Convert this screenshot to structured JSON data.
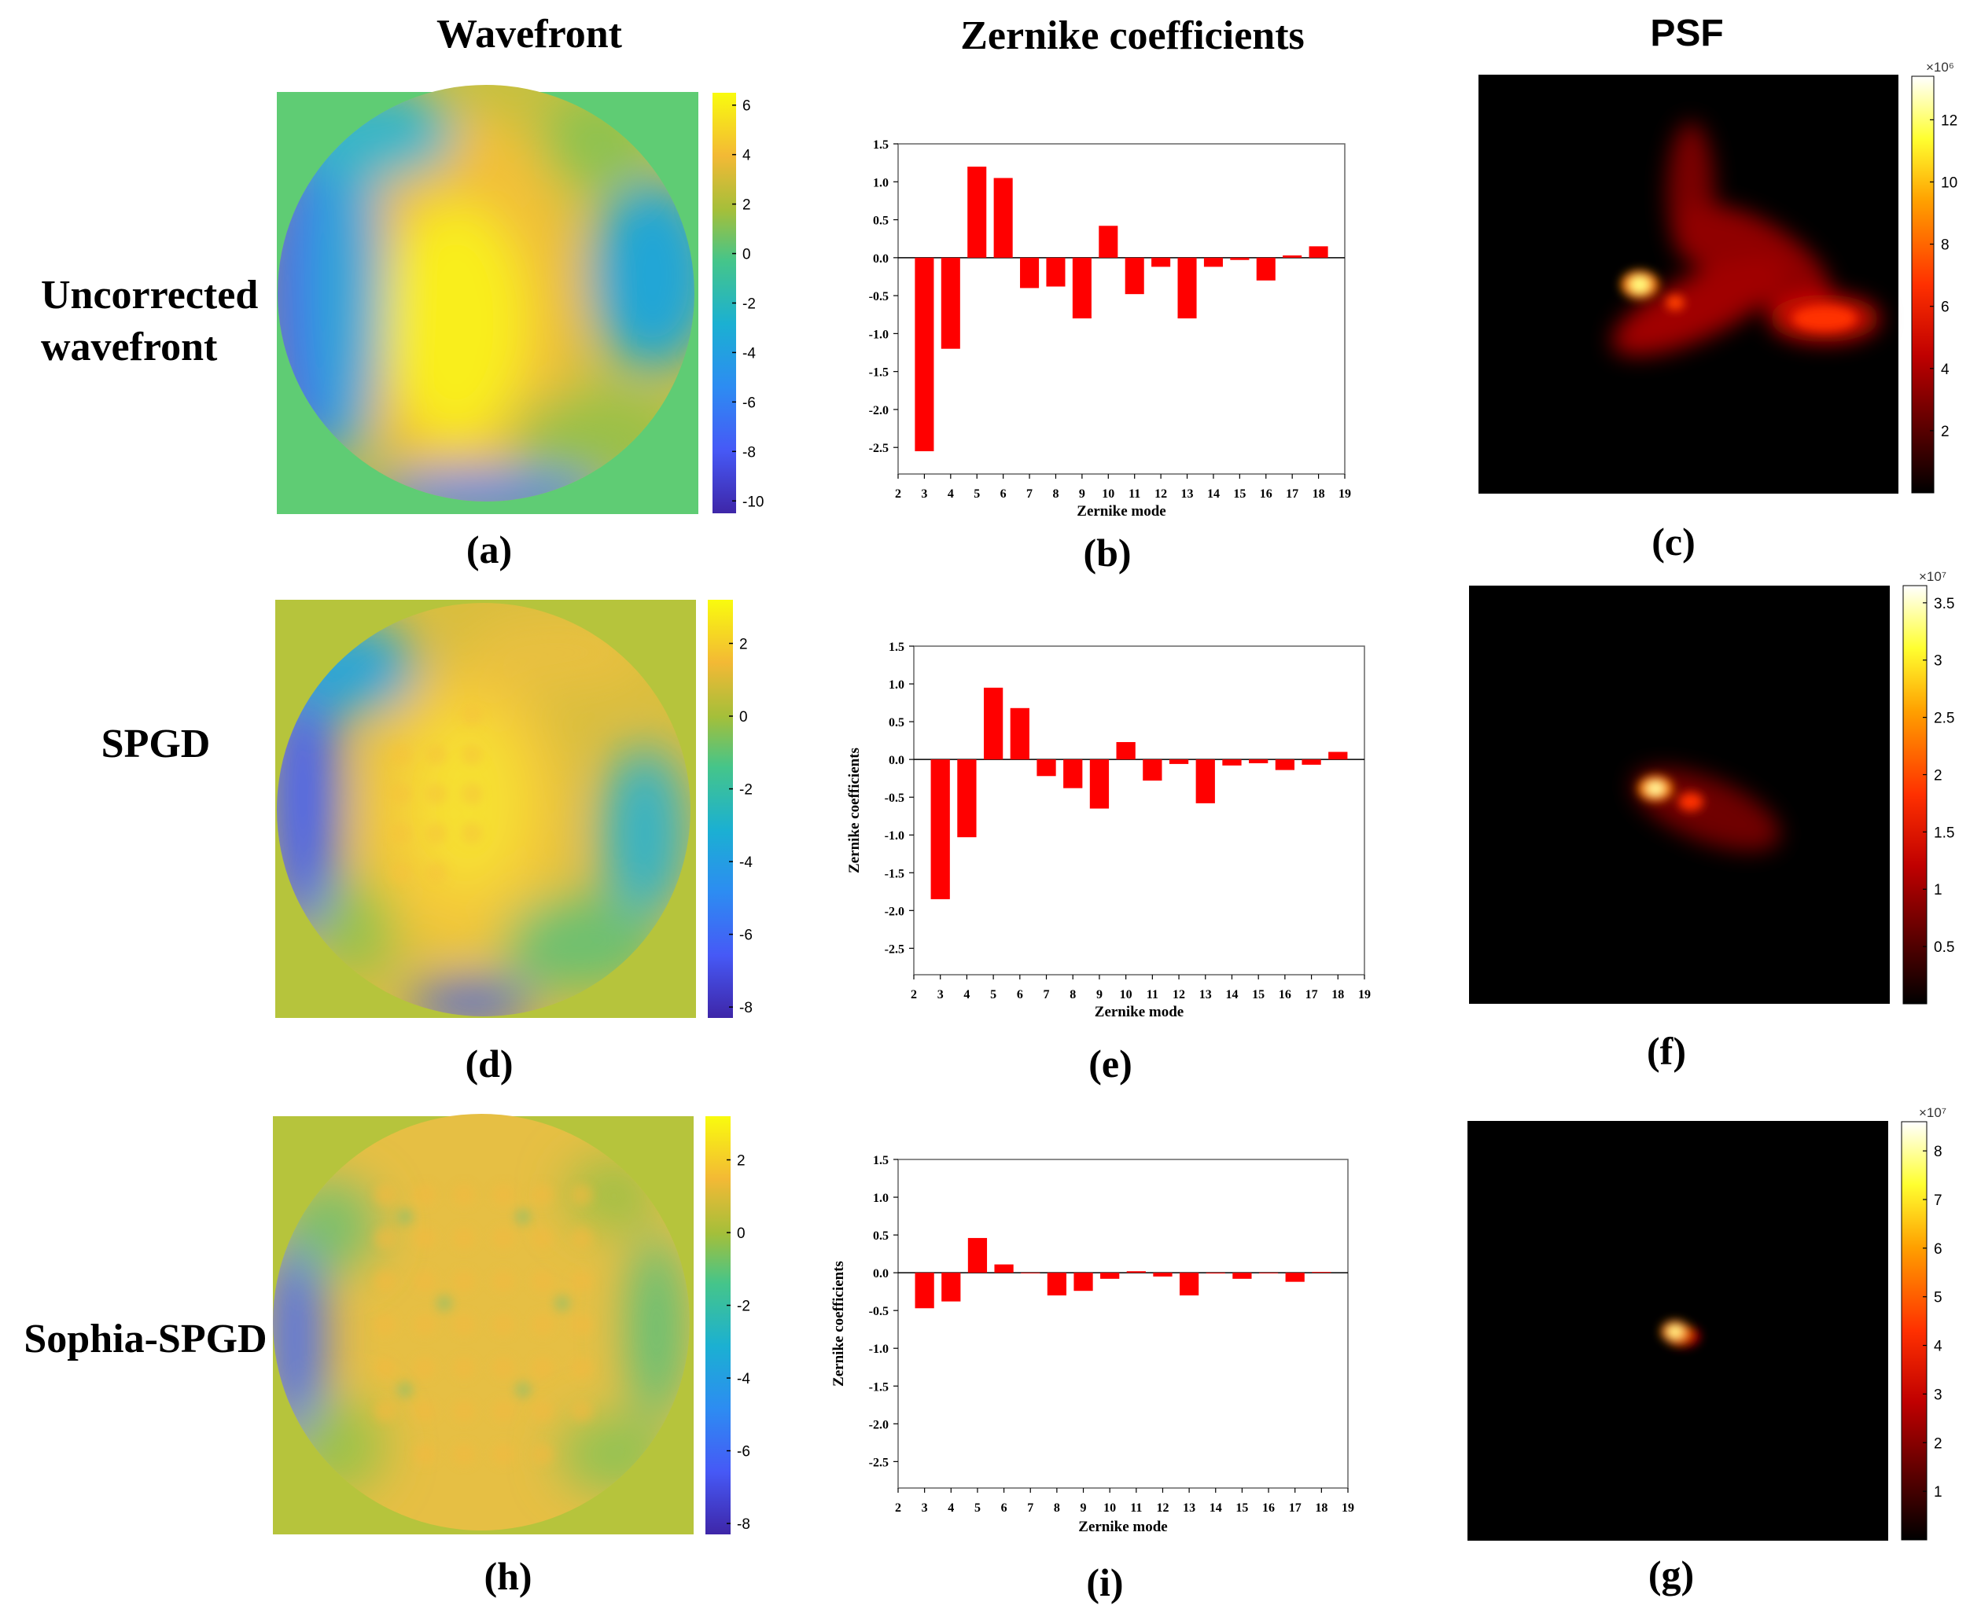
{
  "column_headers": {
    "wavefront": "Wavefront",
    "zernike": "Zernike coefficients",
    "psf": "PSF"
  },
  "row_labels": {
    "uncorrected_line1": "Uncorrected",
    "uncorrected_line2": "wavefront",
    "spgd": "SPGD",
    "sophia": "Sophia-SPGD"
  },
  "panel_labels": [
    "(a)",
    "(b)",
    "(c)",
    "(d)",
    "(e)",
    "(f)",
    "(h)",
    "(i)",
    "(g)"
  ],
  "colors": {
    "bar": "#ff0000",
    "text": "#000000",
    "gridline": "#000000"
  },
  "wavefront_colorbars": [
    {
      "ticks": [
        "6",
        "4",
        "2",
        "0",
        "-2",
        "-4",
        "-6",
        "-8",
        "-10"
      ],
      "values": [
        6,
        4,
        2,
        0,
        -2,
        -4,
        -6,
        -8,
        -10
      ],
      "range": [
        -10.5,
        6.5
      ]
    },
    {
      "ticks": [
        "2",
        "0",
        "-2",
        "-4",
        "-6",
        "-8"
      ],
      "values": [
        2,
        0,
        -2,
        -4,
        -6,
        -8
      ],
      "range": [
        -8.3,
        3.2
      ]
    },
    {
      "ticks": [
        "2",
        "0",
        "-2",
        "-4",
        "-6",
        "-8"
      ],
      "values": [
        2,
        0,
        -2,
        -4,
        -6,
        -8
      ],
      "range": [
        -8.3,
        3.2
      ]
    }
  ],
  "psf_colorbars": [
    {
      "exponent": "×10⁶",
      "ticks": [
        "12",
        "10",
        "8",
        "6",
        "4",
        "2"
      ],
      "values": [
        12,
        10,
        8,
        6,
        4,
        2
      ],
      "range": [
        0,
        13.4
      ]
    },
    {
      "exponent": "×10⁷",
      "ticks": [
        "3.5",
        "3",
        "2.5",
        "2",
        "1.5",
        "1",
        "0.5"
      ],
      "values": [
        3.5,
        3,
        2.5,
        2,
        1.5,
        1,
        0.5
      ],
      "range": [
        0,
        3.65
      ]
    },
    {
      "exponent": "×10⁷",
      "ticks": [
        "8",
        "7",
        "6",
        "5",
        "4",
        "3",
        "2",
        "1"
      ],
      "values": [
        8,
        7,
        6,
        5,
        4,
        3,
        2,
        1
      ],
      "range": [
        0,
        8.6
      ]
    }
  ],
  "chart_data": [
    {
      "type": "bar",
      "title": "",
      "xlabel": "Zernike mode",
      "ylabel": "",
      "x": [
        3,
        4,
        5,
        6,
        7,
        8,
        9,
        10,
        11,
        12,
        13,
        14,
        15,
        16,
        17,
        18
      ],
      "values": [
        -2.55,
        -1.2,
        1.2,
        1.05,
        -0.4,
        -0.38,
        -0.8,
        0.42,
        -0.48,
        -0.12,
        -0.8,
        -0.12,
        -0.03,
        -0.3,
        0.03,
        0.15
      ],
      "xlim": [
        2,
        19
      ],
      "ylim": [
        -2.85,
        1.5
      ],
      "xticks": [
        "2",
        "3",
        "4",
        "5",
        "6",
        "7",
        "8",
        "9",
        "10",
        "11",
        "12",
        "13",
        "14",
        "15",
        "16",
        "17",
        "18",
        "19"
      ],
      "yticks": [
        "1.5",
        "1.0",
        "0.5",
        "0.0",
        "-0.5",
        "-1.0",
        "-1.5",
        "-2.0",
        "-2.5"
      ]
    },
    {
      "type": "bar",
      "title": "",
      "xlabel": "Zernike mode",
      "ylabel": "Zernike coefficients",
      "x": [
        3,
        4,
        5,
        6,
        7,
        8,
        9,
        10,
        11,
        12,
        13,
        14,
        15,
        16,
        17,
        18
      ],
      "values": [
        -1.85,
        -1.03,
        0.95,
        0.68,
        -0.22,
        -0.38,
        -0.65,
        0.23,
        -0.28,
        -0.06,
        -0.58,
        -0.08,
        -0.05,
        -0.14,
        -0.07,
        0.1
      ],
      "xlim": [
        2,
        19
      ],
      "ylim": [
        -2.85,
        1.5
      ],
      "xticks": [
        "2",
        "3",
        "4",
        "5",
        "6",
        "7",
        "8",
        "9",
        "10",
        "11",
        "12",
        "13",
        "14",
        "15",
        "16",
        "17",
        "18",
        "19"
      ],
      "yticks": [
        "1.5",
        "1.0",
        "0.5",
        "0.0",
        "-0.5",
        "-1.0",
        "-1.5",
        "-2.0",
        "-2.5"
      ]
    },
    {
      "type": "bar",
      "title": "",
      "xlabel": "Zernike mode",
      "ylabel": "Zernike coefficients",
      "x": [
        3,
        4,
        5,
        6,
        7,
        8,
        9,
        10,
        11,
        12,
        13,
        14,
        15,
        16,
        17,
        18
      ],
      "values": [
        -0.47,
        -0.38,
        0.46,
        0.11,
        0.0,
        -0.3,
        -0.24,
        -0.08,
        0.02,
        -0.05,
        -0.3,
        -0.01,
        -0.08,
        0.0,
        -0.12,
        0.01
      ],
      "xlim": [
        2,
        19
      ],
      "ylim": [
        -2.85,
        1.5
      ],
      "xticks": [
        "2",
        "3",
        "4",
        "5",
        "6",
        "7",
        "8",
        "9",
        "10",
        "11",
        "12",
        "13",
        "14",
        "15",
        "16",
        "17",
        "18",
        "19"
      ],
      "yticks": [
        "1.5",
        "1.0",
        "0.5",
        "0.0",
        "-0.5",
        "-1.0",
        "-1.5",
        "-2.0",
        "-2.5"
      ]
    }
  ]
}
